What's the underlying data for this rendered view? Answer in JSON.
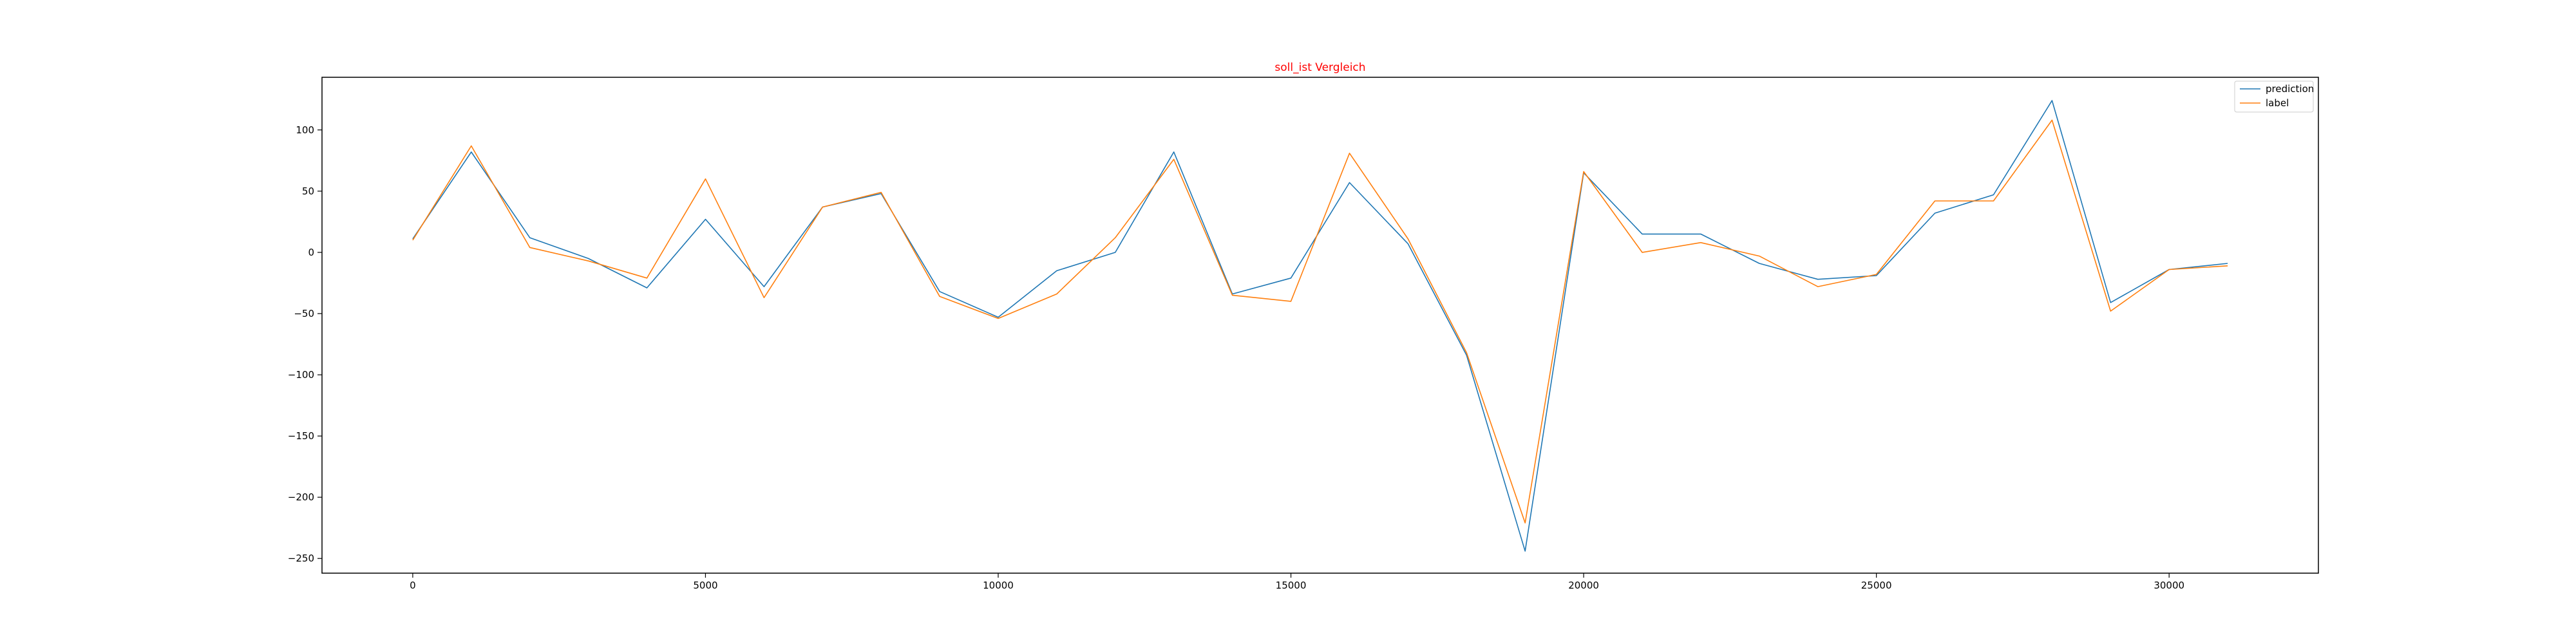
{
  "chart_data": {
    "type": "line",
    "title": "soll_ist Vergleich",
    "title_color": "#ff0000",
    "xlabel": "",
    "ylabel": "",
    "xlim": [
      -1550,
      32550
    ],
    "ylim": [
      -262,
      143
    ],
    "xticks": [
      0,
      5000,
      10000,
      15000,
      20000,
      25000,
      30000
    ],
    "yticks": [
      100,
      50,
      0,
      -50,
      -100,
      -150,
      -200,
      -250
    ],
    "legend_position": "top-right",
    "grid": false,
    "x": [
      0,
      1000,
      2000,
      3000,
      4000,
      5000,
      6000,
      7000,
      8000,
      9000,
      10000,
      11000,
      12000,
      13000,
      14000,
      15000,
      16000,
      17000,
      18000,
      19000,
      20000,
      21000,
      22000,
      23000,
      24000,
      25000,
      26000,
      27000,
      28000,
      29000,
      30000,
      31000
    ],
    "series": [
      {
        "name": "prediction",
        "color": "#1f77b4",
        "values": [
          11,
          82,
          12,
          -5,
          -29,
          27,
          -28,
          37,
          48,
          -32,
          -53,
          -15,
          0,
          82,
          -34,
          -21,
          57,
          7,
          -84,
          -244,
          65,
          15,
          15,
          -9,
          -22,
          -19,
          32,
          47,
          124,
          -41,
          -14,
          -9
        ]
      },
      {
        "name": "label",
        "color": "#ff7f0e",
        "values": [
          10,
          87,
          4,
          -7,
          -21,
          60,
          -37,
          37,
          49,
          -36,
          -54,
          -34,
          12,
          76,
          -35,
          -40,
          81,
          11,
          -82,
          -221,
          66,
          0,
          8,
          -3,
          -28,
          -18,
          42,
          42,
          108,
          -48,
          -14,
          -11
        ]
      }
    ]
  }
}
